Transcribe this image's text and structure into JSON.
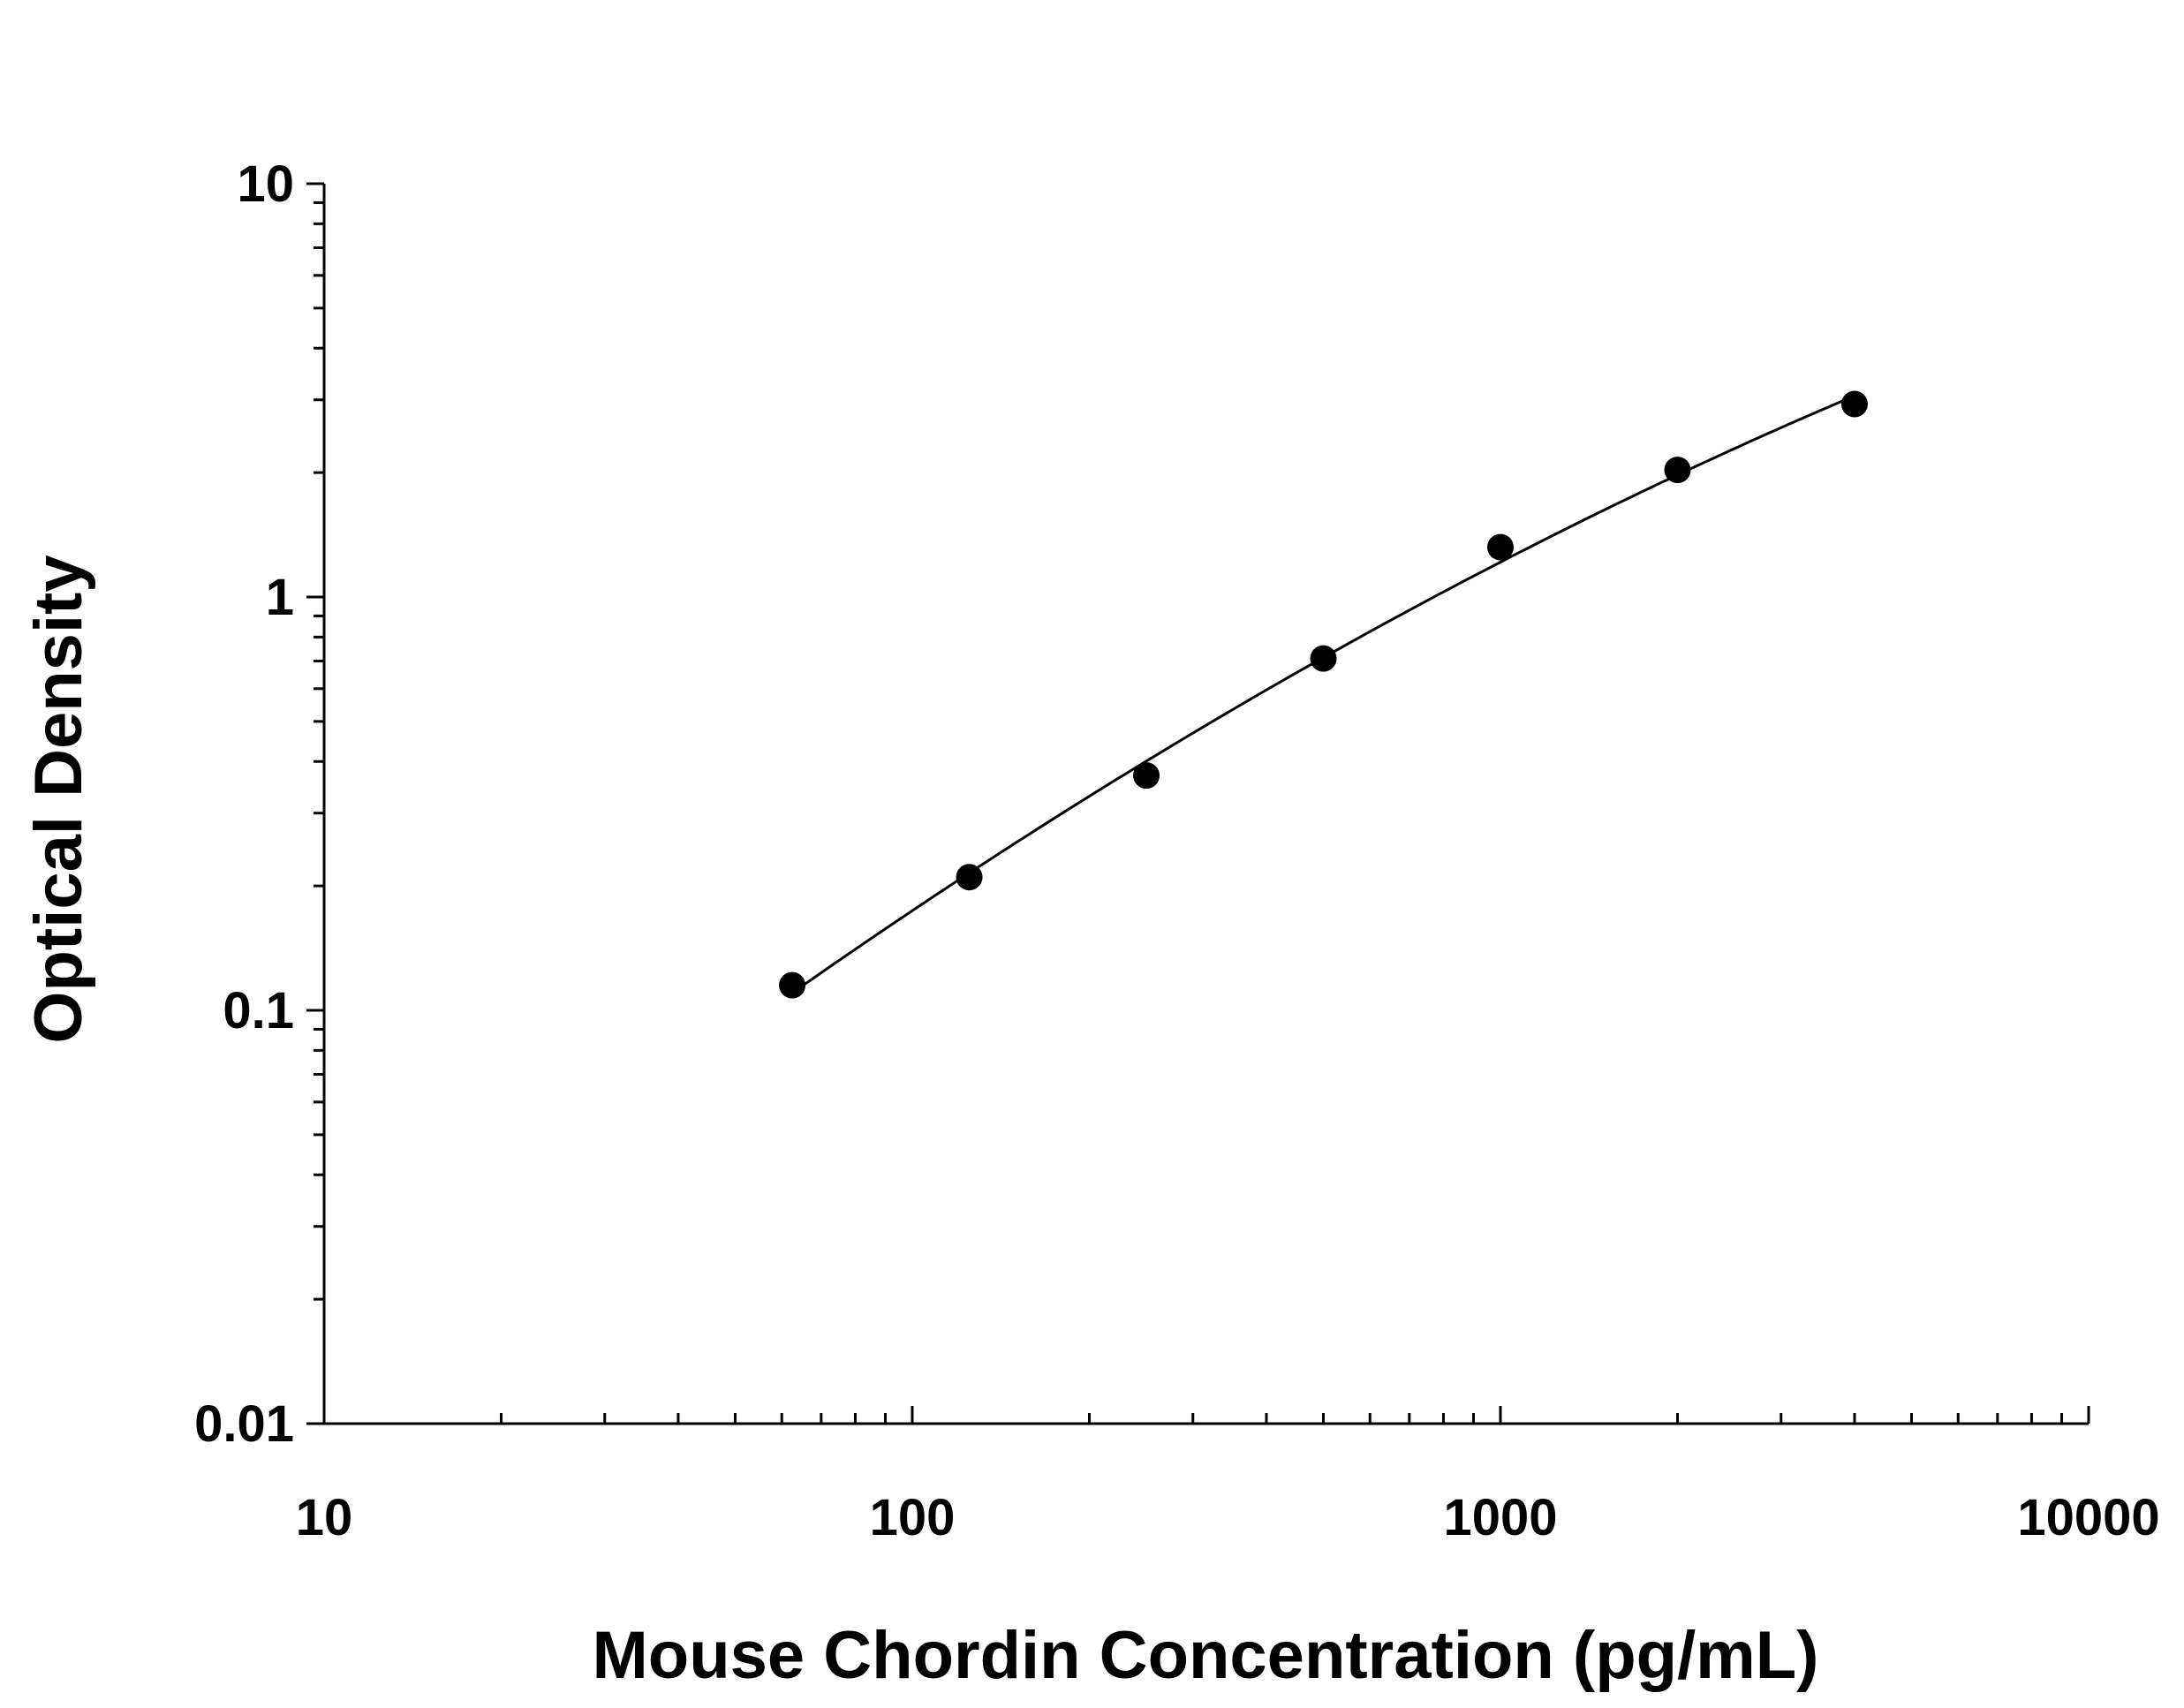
{
  "chart_data": {
    "type": "scatter",
    "title": "",
    "xlabel": "Mouse Chordin Concentration (pg/mL)",
    "ylabel": "Optical Density",
    "x_scale": "log",
    "y_scale": "log",
    "xlim": [
      10,
      10000
    ],
    "ylim": [
      0.01,
      10
    ],
    "x_ticks": [
      "10",
      "100",
      "1000",
      "10000"
    ],
    "y_ticks": [
      "10",
      "1",
      "0.1",
      "0.01"
    ],
    "grid": false,
    "legend": "none",
    "marker_color": "#000000",
    "line_color": "#000000",
    "series": [
      {
        "x": [
          62.5,
          125,
          250,
          500,
          1000,
          2000,
          4000
        ],
        "y": [
          0.115,
          0.21,
          0.37,
          0.71,
          1.32,
          2.03,
          2.93
        ]
      }
    ]
  }
}
